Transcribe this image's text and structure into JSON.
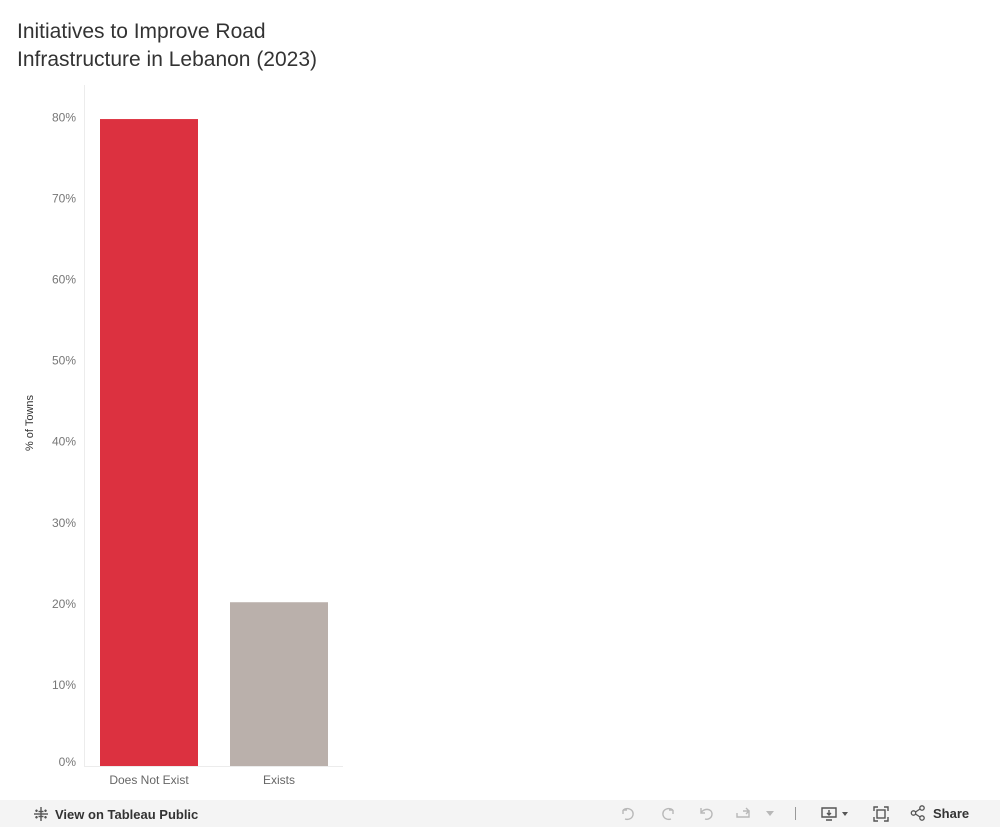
{
  "title_lines": [
    "Initiatives to Improve Road",
    "Infrastructure in Lebanon (2023)"
  ],
  "chart_data": {
    "type": "bar",
    "title": "Initiatives to Improve Road Infrastructure in Lebanon (2023)",
    "xlabel": "",
    "ylabel": "% of Towns",
    "categories": [
      "Does Not Exist",
      "Exists"
    ],
    "values": [
      79.8,
      20.2
    ],
    "colors": [
      "#dc3140",
      "#bab0ab"
    ],
    "ylim": [
      0,
      84
    ],
    "yticks": [
      0,
      10,
      20,
      30,
      40,
      50,
      60,
      70,
      80
    ],
    "ytick_labels": [
      "0%",
      "10%",
      "20%",
      "30%",
      "40%",
      "50%",
      "60%",
      "70%",
      "80%"
    ],
    "grid": false,
    "legend": "none"
  },
  "footer": {
    "view_label": "View on Tableau Public",
    "share_label": "Share"
  },
  "icons": {
    "tableau": "tableau-logo-icon",
    "undo": "undo-icon",
    "redo": "redo-icon",
    "revert": "revert-icon",
    "refresh": "refresh-icon",
    "download": "download-icon",
    "fullscreen": "fullscreen-icon",
    "share": "share-icon"
  }
}
